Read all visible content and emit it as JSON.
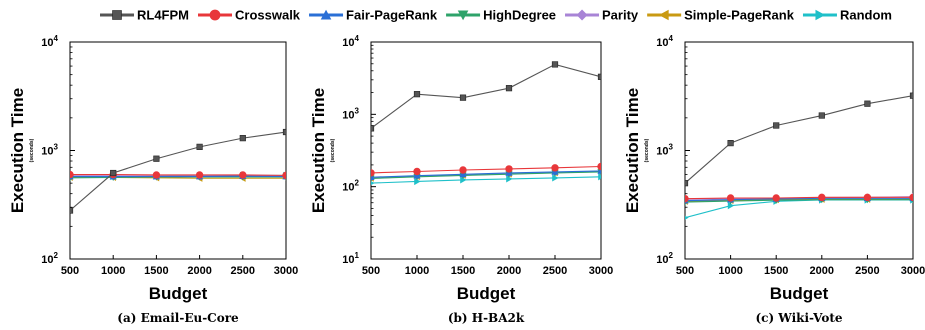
{
  "legend": {
    "placement": "top",
    "entries": [
      {
        "name": "RL4FPM",
        "color": "#555555",
        "marker": "square"
      },
      {
        "name": "Crosswalk",
        "color": "#e8373a",
        "marker": "circle"
      },
      {
        "name": "Fair-PageRank",
        "color": "#2a6fd6",
        "marker": "triangle-up"
      },
      {
        "name": "HighDegree",
        "color": "#2ea36a",
        "marker": "triangle-down"
      },
      {
        "name": "Parity",
        "color": "#a884d6",
        "marker": "diamond"
      },
      {
        "name": "Simple-PageRank",
        "color": "#c99a12",
        "marker": "triangle-left"
      },
      {
        "name": "Random",
        "color": "#1fc0c9",
        "marker": "triangle-right"
      }
    ]
  },
  "chart_data": [
    {
      "type": "line",
      "caption": "(a) Email-Eu-Core",
      "xlabel": "Budget",
      "ylabel": "Execution Time",
      "ylabel_unit": "(seconds)",
      "y_scale": "log",
      "xlim": [
        500,
        3000
      ],
      "ylim": [
        100,
        10000
      ],
      "x": [
        500,
        1000,
        1500,
        2000,
        2500,
        3000
      ],
      "x_ticks": [
        "500",
        "1000",
        "1500",
        "2000",
        "2500",
        "3000"
      ],
      "y_ticks": [
        {
          "base": "10",
          "exp": "2",
          "value": 100
        },
        {
          "base": "10",
          "exp": "3",
          "value": 1000
        },
        {
          "base": "10",
          "exp": "4",
          "value": 10000
        }
      ],
      "series": [
        {
          "name": "RL4FPM",
          "values": [
            280,
            620,
            840,
            1080,
            1300,
            1480
          ]
        },
        {
          "name": "Crosswalk",
          "values": [
            600,
            600,
            595,
            595,
            595,
            590
          ]
        },
        {
          "name": "Fair-PageRank",
          "values": [
            575,
            575,
            575,
            575,
            580,
            575
          ]
        },
        {
          "name": "HighDegree",
          "values": [
            560,
            565,
            570,
            570,
            570,
            570
          ]
        },
        {
          "name": "Parity",
          "values": [
            585,
            585,
            580,
            580,
            580,
            580
          ]
        },
        {
          "name": "Simple-PageRank",
          "values": [
            565,
            565,
            560,
            555,
            555,
            555
          ]
        },
        {
          "name": "Random",
          "values": [
            570,
            575,
            580,
            585,
            590,
            590
          ]
        }
      ]
    },
    {
      "type": "line",
      "caption": "(b) H-BA2k",
      "xlabel": "Budget",
      "ylabel": "Execution Time",
      "ylabel_unit": "(seconds)",
      "y_scale": "log",
      "xlim": [
        500,
        3000
      ],
      "ylim": [
        10,
        10000
      ],
      "x": [
        500,
        1000,
        1500,
        2000,
        2500,
        3000
      ],
      "x_ticks": [
        "500",
        "1000",
        "1500",
        "2000",
        "2500",
        "3000"
      ],
      "y_ticks": [
        {
          "base": "10",
          "exp": "1",
          "value": 10
        },
        {
          "base": "10",
          "exp": "2",
          "value": 100
        },
        {
          "base": "10",
          "exp": "3",
          "value": 1000
        },
        {
          "base": "10",
          "exp": "4",
          "value": 10000
        }
      ],
      "series": [
        {
          "name": "RL4FPM",
          "values": [
            640,
            1900,
            1700,
            2300,
            4900,
            3300
          ]
        },
        {
          "name": "Crosswalk",
          "values": [
            155,
            162,
            170,
            176,
            182,
            190
          ]
        },
        {
          "name": "Fair-PageRank",
          "values": [
            135,
            142,
            148,
            155,
            160,
            165
          ]
        },
        {
          "name": "HighDegree",
          "values": [
            130,
            137,
            143,
            149,
            155,
            160
          ]
        },
        {
          "name": "Parity",
          "values": [
            132,
            139,
            145,
            151,
            157,
            162
          ]
        },
        {
          "name": "Simple-PageRank",
          "values": [
            131,
            138,
            144,
            150,
            156,
            161
          ]
        },
        {
          "name": "Random",
          "values": [
            112,
            118,
            124,
            128,
            132,
            137
          ]
        }
      ]
    },
    {
      "type": "line",
      "caption": "(c) Wiki-Vote",
      "xlabel": "Budget",
      "ylabel": "Execution Time",
      "ylabel_unit": "(seconds)",
      "y_scale": "log",
      "xlim": [
        500,
        3000
      ],
      "ylim": [
        100,
        10000
      ],
      "x": [
        500,
        1000,
        1500,
        2000,
        2500,
        3000
      ],
      "x_ticks": [
        "500",
        "1000",
        "1500",
        "2000",
        "2500",
        "3000"
      ],
      "y_ticks": [
        {
          "base": "10",
          "exp": "2",
          "value": 100
        },
        {
          "base": "10",
          "exp": "3",
          "value": 1000
        },
        {
          "base": "10",
          "exp": "4",
          "value": 10000
        }
      ],
      "series": [
        {
          "name": "RL4FPM",
          "values": [
            500,
            1170,
            1700,
            2100,
            2700,
            3200
          ]
        },
        {
          "name": "Crosswalk",
          "values": [
            360,
            365,
            365,
            370,
            370,
            370
          ]
        },
        {
          "name": "Fair-PageRank",
          "values": [
            345,
            352,
            358,
            362,
            362,
            362
          ]
        },
        {
          "name": "HighDegree",
          "values": [
            335,
            342,
            348,
            352,
            352,
            352
          ]
        },
        {
          "name": "Parity",
          "values": [
            355,
            360,
            362,
            368,
            370,
            375
          ]
        },
        {
          "name": "Simple-PageRank",
          "values": [
            340,
            347,
            353,
            355,
            355,
            355
          ]
        },
        {
          "name": "Random",
          "values": [
            240,
            310,
            340,
            350,
            350,
            350
          ]
        }
      ]
    }
  ]
}
